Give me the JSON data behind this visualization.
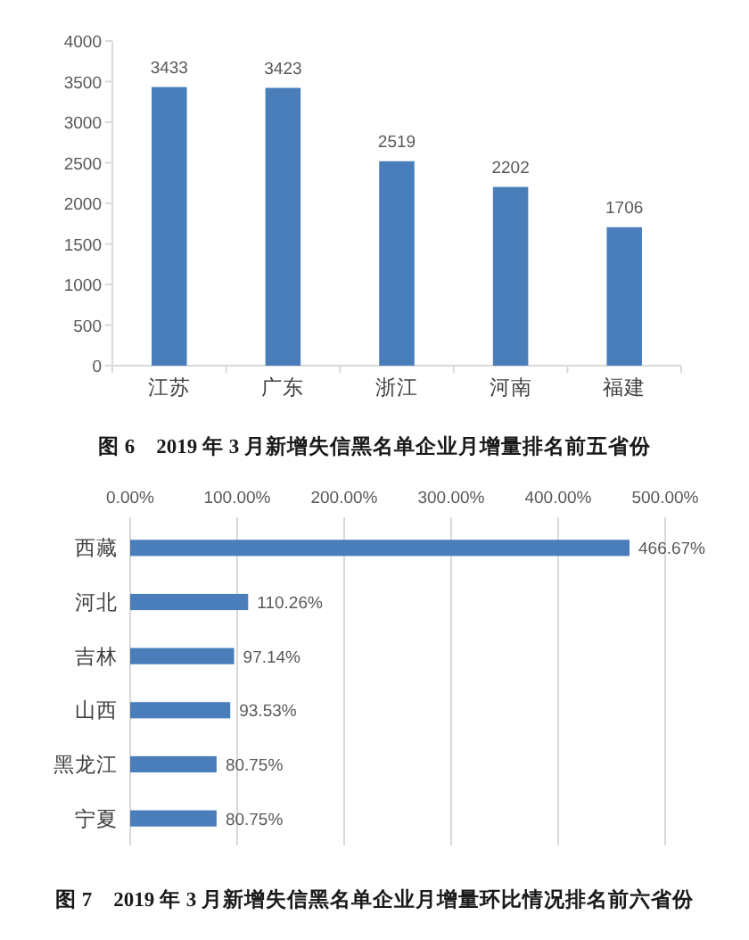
{
  "chart_data": [
    {
      "type": "bar",
      "title": "图 6　2019 年 3 月新增失信黑名单企业月增量排名前五省份",
      "categories": [
        "江苏",
        "广东",
        "浙江",
        "河南",
        "福建"
      ],
      "values": [
        3433,
        3423,
        2519,
        2202,
        1706
      ],
      "color": "#4a7ebb",
      "ylim": [
        0,
        4000
      ],
      "yticks": [
        0,
        500,
        1000,
        1500,
        2000,
        2500,
        3000,
        3500,
        4000
      ],
      "data_labels": true
    },
    {
      "type": "bar",
      "orientation": "horizontal",
      "title": "图 7　2019 年 3 月新增失信黑名单企业月增量环比情况排名前六省份",
      "categories": [
        "西藏",
        "河北",
        "吉林",
        "山西",
        "黑龙江",
        "宁夏"
      ],
      "values": [
        466.67,
        110.26,
        97.14,
        93.53,
        80.75,
        80.75
      ],
      "value_labels": [
        "466.67%",
        "110.26%",
        "97.14%",
        "93.53%",
        "80.75%",
        "80.75%"
      ],
      "color": "#4a7ebb",
      "xlim": [
        0,
        500
      ],
      "xticks": [
        {
          "value": 0,
          "label": "0.00%"
        },
        {
          "value": 100,
          "label": "100.00%"
        },
        {
          "value": 200,
          "label": "200.00%"
        },
        {
          "value": 300,
          "label": "300.00%"
        },
        {
          "value": 400,
          "label": "400.00%"
        },
        {
          "value": 500,
          "label": "500.00%"
        }
      ],
      "grid": "x"
    }
  ]
}
